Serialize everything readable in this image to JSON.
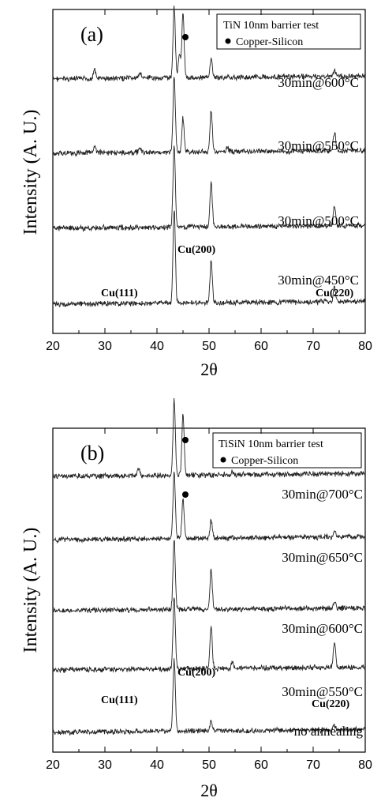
{
  "chart_data": [
    {
      "type": "line",
      "panel_label": "(a)",
      "legend": {
        "title": "TiN 10nm barrier test",
        "marker_label": "Copper-Silicon",
        "placement": "top-right"
      },
      "xlabel": "2θ",
      "ylabel": "Intensity (A. U.)",
      "xlim": [
        20,
        80
      ],
      "xticks": [
        20,
        30,
        40,
        50,
        60,
        70,
        80
      ],
      "grid": false,
      "copper_silicon_marker_x": 45.0,
      "peak_labels": [
        {
          "text": "Cu(111)",
          "x": 43.3
        },
        {
          "text": "Cu(200)",
          "x": 50.4
        },
        {
          "text": "Cu(220)",
          "x": 74.1
        }
      ],
      "series": [
        {
          "name": "30min@600°C",
          "offset": 3,
          "peaks": [
            [
              28.0,
              0.12
            ],
            [
              36.8,
              0.08
            ],
            [
              43.3,
              0.95
            ],
            [
              44.3,
              0.3
            ],
            [
              45.0,
              0.85
            ],
            [
              50.4,
              0.25
            ],
            [
              74.1,
              0.08
            ]
          ]
        },
        {
          "name": "30min@550°C",
          "offset": 2,
          "peaks": [
            [
              28.0,
              0.1
            ],
            [
              36.7,
              0.07
            ],
            [
              43.3,
              1.0
            ],
            [
              45.0,
              0.45
            ],
            [
              50.4,
              0.55
            ],
            [
              53.5,
              0.05
            ],
            [
              74.1,
              0.25
            ]
          ]
        },
        {
          "name": "30min@500°C",
          "offset": 1,
          "peaks": [
            [
              43.3,
              1.1
            ],
            [
              50.4,
              0.6
            ],
            [
              74.1,
              0.25
            ]
          ]
        },
        {
          "name": "30min@450°C",
          "offset": 0,
          "peaks": [
            [
              43.3,
              1.25
            ],
            [
              50.4,
              0.55
            ],
            [
              74.1,
              0.2
            ]
          ]
        }
      ]
    },
    {
      "type": "line",
      "panel_label": "(b)",
      "legend": {
        "title": "TiSiN 10nm barrier test",
        "marker_label": "Copper-Silicon",
        "placement": "top-right"
      },
      "xlabel": "2θ",
      "ylabel": "Intensity (A. U.)",
      "xlim": [
        20,
        80
      ],
      "xticks": [
        20,
        30,
        40,
        50,
        60,
        70,
        80
      ],
      "grid": false,
      "copper_silicon_marker_x": 45.0,
      "peak_labels": [
        {
          "text": "Cu(111)",
          "x": 43.3
        },
        {
          "text": "Cu(200)",
          "x": 50.4
        },
        {
          "text": "Cu(220)",
          "x": 74.1
        }
      ],
      "series": [
        {
          "name": "30min@700°C",
          "offset": 4,
          "peaks": [
            [
              36.5,
              0.12
            ],
            [
              43.3,
              1.05
            ],
            [
              45.0,
              0.85
            ],
            [
              54.5,
              0.05
            ]
          ]
        },
        {
          "name": "30min@650°C",
          "offset": 3,
          "peaks": [
            [
              43.3,
              0.95
            ],
            [
              45.0,
              0.55
            ],
            [
              50.4,
              0.25
            ],
            [
              74.1,
              0.08
            ]
          ]
        },
        {
          "name": "30min@600°C",
          "offset": 2,
          "peaks": [
            [
              43.3,
              1.0
            ],
            [
              50.4,
              0.55
            ],
            [
              74.1,
              0.1
            ]
          ]
        },
        {
          "name": "30min@550°C",
          "offset": 1,
          "peaks": [
            [
              43.3,
              1.0
            ],
            [
              50.4,
              0.6
            ],
            [
              54.5,
              0.08
            ],
            [
              74.1,
              0.35
            ]
          ]
        },
        {
          "name": "no annealing",
          "offset": 0,
          "peaks": [
            [
              43.3,
              1.0
            ],
            [
              50.4,
              0.15
            ],
            [
              74.1,
              0.05
            ]
          ]
        }
      ]
    }
  ]
}
